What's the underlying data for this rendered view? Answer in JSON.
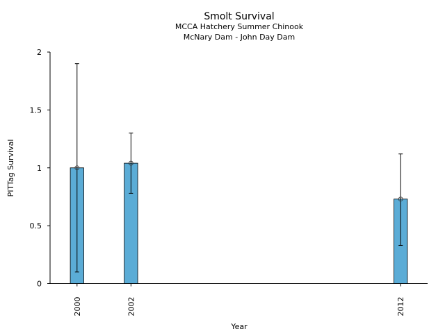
{
  "chart_data": {
    "type": "bar",
    "title": "Smolt Survival",
    "subtitle_lines": [
      "MCCA Hatchery Summer Chinook",
      "McNary Dam - John Day Dam"
    ],
    "xlabel": "Year",
    "ylabel": "PITTag Survival",
    "xlim": [
      1999,
      2013
    ],
    "ylim": [
      0,
      2
    ],
    "yticks": [
      0,
      0.5,
      1,
      1.5,
      2
    ],
    "ytick_labels": [
      "0",
      "0.5",
      "1",
      "1.5",
      "2"
    ],
    "x": [
      2000,
      2002,
      2012
    ],
    "xtick_labels": [
      "2000",
      "2002",
      "2012"
    ],
    "values": [
      1.0,
      1.04,
      0.73
    ],
    "error_lower": [
      0.1,
      0.78,
      0.33
    ],
    "error_upper": [
      1.9,
      1.3,
      1.12
    ],
    "bar_width_years": 0.5,
    "bar_color": "#5bacd6",
    "grid": false
  }
}
